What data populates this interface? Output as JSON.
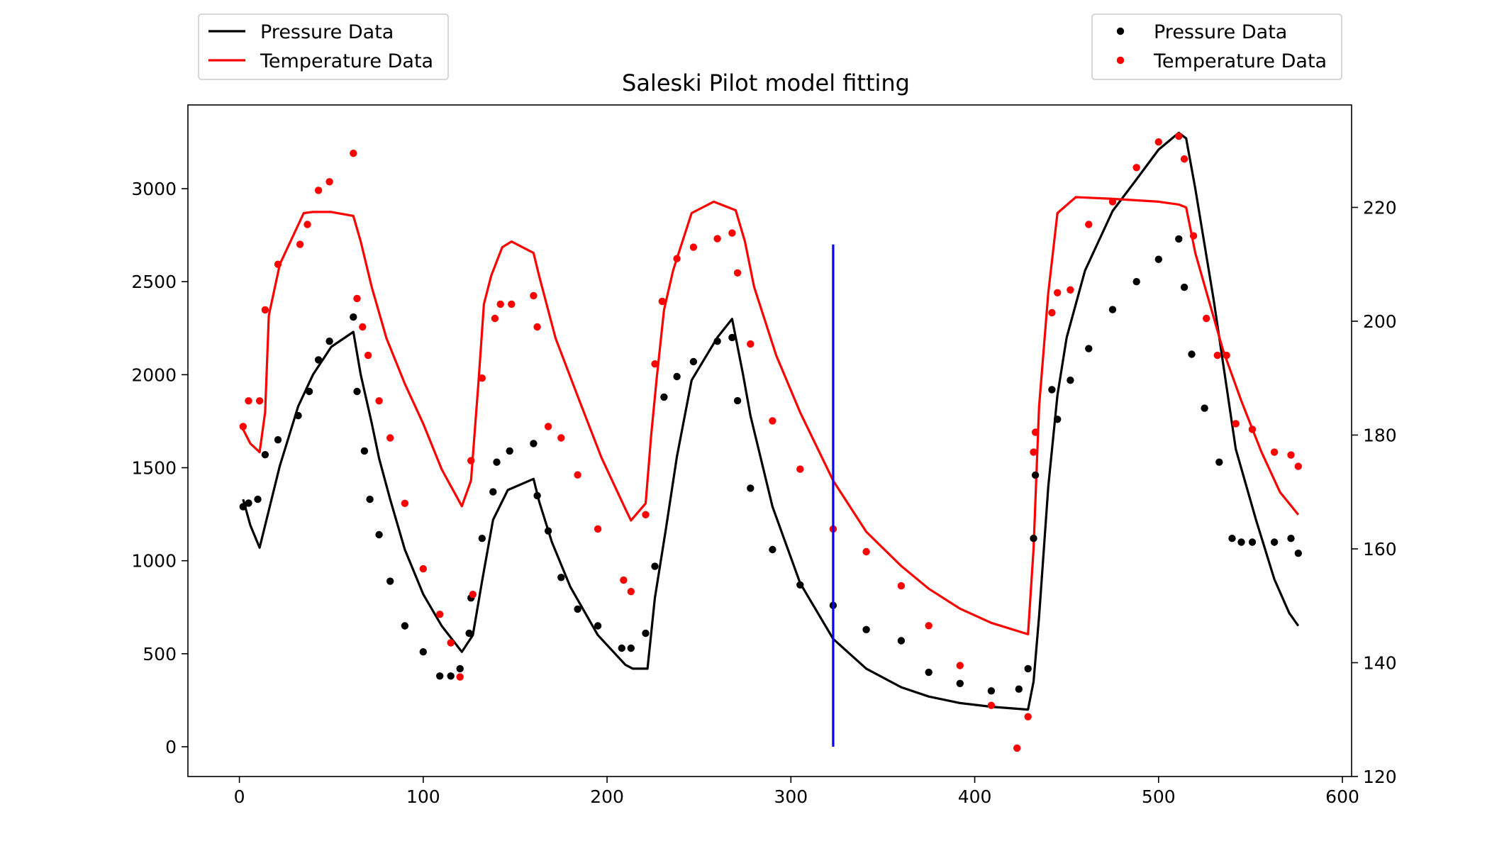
{
  "chart_data": {
    "type": "line",
    "title": "Saleski Pilot model fitting",
    "xlabel": "",
    "ylabel": "",
    "y2label": "",
    "xlim": [
      -28,
      605
    ],
    "ylim": [
      -160,
      3450
    ],
    "y2lim": [
      120,
      238
    ],
    "x_ticks": [
      0,
      100,
      200,
      300,
      400,
      500,
      600
    ],
    "y_ticks": [
      0,
      500,
      1000,
      1500,
      2000,
      2500,
      3000
    ],
    "y2_ticks": [
      120,
      140,
      160,
      180,
      200,
      220
    ],
    "grid": false,
    "legend_left": {
      "placement": "top-left outside",
      "entries": [
        {
          "label": "Pressure Data",
          "marker": "line",
          "color": "#000000"
        },
        {
          "label": "Temperature Data",
          "marker": "line",
          "color": "#ff0000"
        }
      ]
    },
    "legend_right": {
      "placement": "top-right outside",
      "entries": [
        {
          "label": "Pressure Data",
          "marker": "dot",
          "color": "#000000"
        },
        {
          "label": "Temperature Data",
          "marker": "dot",
          "color": "#ff0000"
        }
      ]
    },
    "vline": {
      "x": 323,
      "y_from": 0,
      "y_to": 2700,
      "color": "#0000ff"
    },
    "series": [
      {
        "name": "Pressure Data",
        "kind": "line",
        "axis": "left",
        "color": "#000000",
        "points": [
          [
            2,
            1330
          ],
          [
            6,
            1190
          ],
          [
            11,
            1070
          ],
          [
            22,
            1510
          ],
          [
            32,
            1830
          ],
          [
            40,
            2000
          ],
          [
            50,
            2150
          ],
          [
            62,
            2230
          ],
          [
            66,
            2000
          ],
          [
            72,
            1740
          ],
          [
            76,
            1550
          ],
          [
            82,
            1330
          ],
          [
            90,
            1060
          ],
          [
            100,
            820
          ],
          [
            110,
            650
          ],
          [
            121,
            510
          ],
          [
            127,
            600
          ],
          [
            132,
            890
          ],
          [
            138,
            1220
          ],
          [
            146,
            1380
          ],
          [
            160,
            1440
          ],
          [
            163,
            1320
          ],
          [
            170,
            1100
          ],
          [
            180,
            860
          ],
          [
            195,
            600
          ],
          [
            210,
            440
          ],
          [
            214,
            420
          ],
          [
            222,
            420
          ],
          [
            226,
            800
          ],
          [
            232,
            1170
          ],
          [
            238,
            1560
          ],
          [
            246,
            1970
          ],
          [
            260,
            2200
          ],
          [
            268,
            2300
          ],
          [
            274,
            2000
          ],
          [
            278,
            1780
          ],
          [
            290,
            1290
          ],
          [
            305,
            880
          ],
          [
            323,
            580
          ],
          [
            341,
            420
          ],
          [
            360,
            320
          ],
          [
            375,
            270
          ],
          [
            392,
            235
          ],
          [
            409,
            215
          ],
          [
            429,
            200
          ],
          [
            432,
            350
          ],
          [
            435,
            700
          ],
          [
            440,
            1400
          ],
          [
            445,
            1890
          ],
          [
            450,
            2200
          ],
          [
            460,
            2560
          ],
          [
            475,
            2880
          ],
          [
            488,
            3050
          ],
          [
            500,
            3210
          ],
          [
            511,
            3300
          ],
          [
            515,
            3270
          ],
          [
            520,
            3000
          ],
          [
            530,
            2400
          ],
          [
            542,
            1600
          ],
          [
            553,
            1220
          ],
          [
            563,
            900
          ],
          [
            571,
            720
          ],
          [
            576,
            650
          ]
        ]
      },
      {
        "name": "Temperature Data",
        "kind": "line",
        "axis": "right",
        "color": "#ff0000",
        "points": [
          [
            2,
            181
          ],
          [
            6,
            178.5
          ],
          [
            11,
            177
          ],
          [
            14,
            184
          ],
          [
            16,
            201
          ],
          [
            22,
            210
          ],
          [
            35,
            219
          ],
          [
            40,
            219.2
          ],
          [
            50,
            219.2
          ],
          [
            62,
            218.5
          ],
          [
            66,
            214
          ],
          [
            72,
            206
          ],
          [
            80,
            197
          ],
          [
            90,
            189
          ],
          [
            100,
            182
          ],
          [
            110,
            174
          ],
          [
            121,
            167.5
          ],
          [
            126,
            172
          ],
          [
            130,
            189
          ],
          [
            133,
            203
          ],
          [
            137,
            208
          ],
          [
            143,
            213
          ],
          [
            148,
            214
          ],
          [
            160,
            212
          ],
          [
            163,
            208
          ],
          [
            172,
            197
          ],
          [
            185,
            186
          ],
          [
            197,
            176
          ],
          [
            210,
            167
          ],
          [
            213,
            165
          ],
          [
            221,
            168
          ],
          [
            224,
            180
          ],
          [
            227,
            190
          ],
          [
            231,
            202
          ],
          [
            236,
            209
          ],
          [
            246,
            219
          ],
          [
            258,
            221
          ],
          [
            270,
            219.5
          ],
          [
            275,
            214
          ],
          [
            280,
            206
          ],
          [
            292,
            194
          ],
          [
            305,
            184
          ],
          [
            323,
            172
          ],
          [
            341,
            163
          ],
          [
            360,
            157
          ],
          [
            375,
            153
          ],
          [
            392,
            149.5
          ],
          [
            409,
            147
          ],
          [
            429,
            145
          ],
          [
            432,
            160
          ],
          [
            435,
            185
          ],
          [
            440,
            205
          ],
          [
            445,
            219
          ],
          [
            455,
            221.8
          ],
          [
            475,
            221.5
          ],
          [
            500,
            221
          ],
          [
            511,
            220.5
          ],
          [
            515,
            220
          ],
          [
            520,
            212
          ],
          [
            535,
            195
          ],
          [
            545,
            186
          ],
          [
            556,
            177
          ],
          [
            566,
            170
          ],
          [
            576,
            166
          ]
        ]
      },
      {
        "name": "Pressure Data",
        "kind": "scatter",
        "axis": "left",
        "color": "#000000",
        "points": [
          [
            2,
            1290
          ],
          [
            5,
            1310
          ],
          [
            10,
            1330
          ],
          [
            14,
            1570
          ],
          [
            21,
            1650
          ],
          [
            32,
            1780
          ],
          [
            38,
            1910
          ],
          [
            43,
            2080
          ],
          [
            49,
            2180
          ],
          [
            62,
            2310
          ],
          [
            64,
            1910
          ],
          [
            68,
            1590
          ],
          [
            71,
            1330
          ],
          [
            76,
            1140
          ],
          [
            82,
            890
          ],
          [
            90,
            650
          ],
          [
            100,
            510
          ],
          [
            109,
            380
          ],
          [
            115,
            380
          ],
          [
            120,
            420
          ],
          [
            125,
            610
          ],
          [
            126,
            800
          ],
          [
            132,
            1120
          ],
          [
            138,
            1370
          ],
          [
            140,
            1530
          ],
          [
            147,
            1590
          ],
          [
            160,
            1630
          ],
          [
            162,
            1350
          ],
          [
            168,
            1160
          ],
          [
            175,
            910
          ],
          [
            184,
            740
          ],
          [
            195,
            650
          ],
          [
            208,
            530
          ],
          [
            213,
            530
          ],
          [
            221,
            610
          ],
          [
            226,
            970
          ],
          [
            231,
            1880
          ],
          [
            238,
            1990
          ],
          [
            247,
            2070
          ],
          [
            260,
            2180
          ],
          [
            268,
            2200
          ],
          [
            271,
            1860
          ],
          [
            278,
            1390
          ],
          [
            290,
            1060
          ],
          [
            305,
            870
          ],
          [
            323,
            760
          ],
          [
            341,
            630
          ],
          [
            360,
            570
          ],
          [
            375,
            400
          ],
          [
            392,
            340
          ],
          [
            409,
            300
          ],
          [
            424,
            310
          ],
          [
            429,
            420
          ],
          [
            432,
            1120
          ],
          [
            433,
            1460
          ],
          [
            442,
            1920
          ],
          [
            445,
            1760
          ],
          [
            452,
            1970
          ],
          [
            462,
            2140
          ],
          [
            475,
            2350
          ],
          [
            488,
            2500
          ],
          [
            500,
            2620
          ],
          [
            511,
            2730
          ],
          [
            514,
            2470
          ],
          [
            518,
            2110
          ],
          [
            525,
            1820
          ],
          [
            533,
            1530
          ],
          [
            540,
            1120
          ],
          [
            545,
            1100
          ],
          [
            551,
            1100
          ],
          [
            563,
            1100
          ],
          [
            572,
            1120
          ],
          [
            576,
            1040
          ]
        ]
      },
      {
        "name": "Temperature Data",
        "kind": "scatter",
        "axis": "right",
        "color": "#ff0000",
        "points": [
          [
            2,
            181.5
          ],
          [
            5,
            186
          ],
          [
            11,
            186
          ],
          [
            14,
            202
          ],
          [
            21,
            210
          ],
          [
            33,
            213.5
          ],
          [
            37,
            217
          ],
          [
            43,
            223
          ],
          [
            49,
            224.5
          ],
          [
            62,
            229.5
          ],
          [
            64,
            204
          ],
          [
            67,
            199
          ],
          [
            70,
            194
          ],
          [
            76,
            186
          ],
          [
            82,
            179.5
          ],
          [
            90,
            168
          ],
          [
            100,
            156.5
          ],
          [
            109,
            148.5
          ],
          [
            115,
            143.5
          ],
          [
            120,
            137.5
          ],
          [
            126,
            175.5
          ],
          [
            127,
            152
          ],
          [
            132,
            190
          ],
          [
            139,
            200.5
          ],
          [
            142,
            203
          ],
          [
            148,
            203
          ],
          [
            160,
            204.5
          ],
          [
            162,
            199
          ],
          [
            168,
            181.5
          ],
          [
            175,
            179.5
          ],
          [
            184,
            173
          ],
          [
            195,
            163.5
          ],
          [
            209,
            154.5
          ],
          [
            213,
            152.5
          ],
          [
            221,
            166
          ],
          [
            226,
            192.5
          ],
          [
            230,
            203.5
          ],
          [
            238,
            211
          ],
          [
            247,
            213
          ],
          [
            260,
            214.5
          ],
          [
            268,
            215.5
          ],
          [
            271,
            208.5
          ],
          [
            278,
            196
          ],
          [
            290,
            182.5
          ],
          [
            305,
            174
          ],
          [
            323,
            163.5
          ],
          [
            341,
            159.5
          ],
          [
            360,
            153.5
          ],
          [
            375,
            146.5
          ],
          [
            392,
            139.5
          ],
          [
            409,
            132.5
          ],
          [
            423,
            125
          ],
          [
            429,
            130.5
          ],
          [
            432,
            177
          ],
          [
            433,
            180.5
          ],
          [
            442,
            201.5
          ],
          [
            445,
            205
          ],
          [
            452,
            205.5
          ],
          [
            462,
            217
          ],
          [
            475,
            221
          ],
          [
            488,
            227
          ],
          [
            500,
            231.5
          ],
          [
            511,
            232.5
          ],
          [
            514,
            228.5
          ],
          [
            519,
            215
          ],
          [
            526,
            200.5
          ],
          [
            532,
            194
          ],
          [
            537,
            194
          ],
          [
            542,
            182
          ],
          [
            551,
            181
          ],
          [
            563,
            177
          ],
          [
            572,
            176.5
          ],
          [
            576,
            174.5
          ]
        ]
      }
    ]
  }
}
